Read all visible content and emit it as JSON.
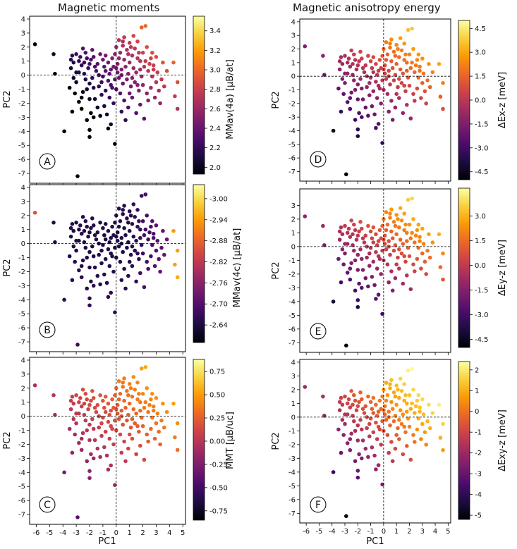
{
  "column_titles": {
    "left": "Magnetic moments",
    "right": "Magnetic anisotropy energy"
  },
  "colormap": {
    "name": "inferno",
    "stops": [
      "#000004",
      "#1b0c41",
      "#4a0c6b",
      "#781c6d",
      "#a52c60",
      "#cf4446",
      "#ed6925",
      "#fb9b06",
      "#f7d13d",
      "#fcffa4"
    ]
  },
  "chart_data": [
    {
      "panel": "A",
      "type": "scatter",
      "xlabel": "",
      "ylabel": "PC2",
      "xlim": [
        -6.5,
        5.2
      ],
      "ylim": [
        -7.7,
        4.2
      ],
      "xticks": [
        "",
        "",
        "",
        "",
        "",
        "",
        "",
        "",
        "",
        "",
        "",
        ""
      ],
      "xtick_values": [
        -6,
        -5,
        -4,
        -3,
        -2,
        -1,
        0,
        1,
        2,
        3,
        4,
        5
      ],
      "yticks": [
        "4",
        "3",
        "2",
        "1",
        "0",
        "-1",
        "-2",
        "-3",
        "-4",
        "-5",
        "-6",
        "-7"
      ],
      "ytick_values": [
        4,
        3,
        2,
        1,
        0,
        -1,
        -2,
        -3,
        -4,
        -5,
        -6,
        -7
      ],
      "colorbar": {
        "label": "MMav(4a) [μB/at]",
        "range": [
          1.93,
          3.55
        ],
        "reverse": false,
        "ticks": [
          "3.4",
          "3.2",
          "3.0",
          "2.8",
          "2.6",
          "2.4",
          "2.2",
          "2.0"
        ],
        "tick_values": [
          3.4,
          3.2,
          3.0,
          2.8,
          2.6,
          2.4,
          2.2,
          2.0
        ]
      },
      "color_func": "A"
    },
    {
      "panel": "B",
      "type": "scatter",
      "xlabel": "",
      "ylabel": "PC2",
      "xlim": [
        -6.5,
        5.2
      ],
      "ylim": [
        -7.7,
        4.2
      ],
      "xticks": [
        "",
        "",
        "",
        "",
        "",
        "",
        "",
        "",
        "",
        "",
        "",
        ""
      ],
      "xtick_values": [
        -6,
        -5,
        -4,
        -3,
        -2,
        -1,
        0,
        1,
        2,
        3,
        4,
        5
      ],
      "yticks": [
        "4",
        "3",
        "2",
        "1",
        "0",
        "-1",
        "-2",
        "-3",
        "-4",
        "-5",
        "-6",
        "-7"
      ],
      "ytick_values": [
        4,
        3,
        2,
        1,
        0,
        -1,
        -2,
        -3,
        -4,
        -5,
        -6,
        -7
      ],
      "colorbar": {
        "label": "MMav(4c) [μB/at]",
        "range": [
          -3.04,
          -2.59
        ],
        "reverse": true,
        "ticks": [
          "-2.64",
          "-2.70",
          "-2.76",
          "-2.82",
          "-2.88",
          "-2.94",
          "-3.00"
        ],
        "tick_values": [
          -2.64,
          -2.7,
          -2.76,
          -2.82,
          -2.88,
          -2.94,
          -3.0
        ]
      },
      "color_func": "B"
    },
    {
      "panel": "C",
      "type": "scatter",
      "xlabel": "PC1",
      "ylabel": "PC2",
      "xlim": [
        -6.5,
        5.2
      ],
      "ylim": [
        -7.7,
        4.2
      ],
      "xticks": [
        "-6",
        "-5",
        "-4",
        "-3",
        "-2",
        "-1",
        "0",
        "1",
        "2",
        "3",
        "4",
        "5"
      ],
      "xtick_values": [
        -6,
        -5,
        -4,
        -3,
        -2,
        -1,
        0,
        1,
        2,
        3,
        4,
        5
      ],
      "yticks": [
        "4",
        "3",
        "2",
        "1",
        "0",
        "-1",
        "-2",
        "-3",
        "-4",
        "-5",
        "-6",
        "-7"
      ],
      "ytick_values": [
        4,
        3,
        2,
        1,
        0,
        -1,
        -2,
        -3,
        -4,
        -5,
        -6,
        -7
      ],
      "colorbar": {
        "label": "MMT [μB/uc]",
        "range": [
          -0.85,
          0.88
        ],
        "reverse": false,
        "ticks": [
          "0.75",
          "0.50",
          "0.25",
          "0.00",
          "-0.25",
          "-0.50",
          "-0.75"
        ],
        "tick_values": [
          0.75,
          0.5,
          0.25,
          0.0,
          -0.25,
          -0.5,
          -0.75
        ]
      },
      "color_func": "C"
    },
    {
      "panel": "D",
      "type": "scatter",
      "xlabel": "",
      "ylabel": "PC2",
      "xlim": [
        -6.5,
        5.2
      ],
      "ylim": [
        -7.7,
        4.2
      ],
      "xticks": [
        "",
        "",
        "",
        "",
        "",
        "",
        "",
        "",
        "",
        "",
        "",
        ""
      ],
      "xtick_values": [
        -6,
        -5,
        -4,
        -3,
        -2,
        -1,
        0,
        1,
        2,
        3,
        4,
        5
      ],
      "yticks": [
        "4",
        "3",
        "2",
        "1",
        "0",
        "-1",
        "-2",
        "-3",
        "-4",
        "-5",
        "-6",
        "-7"
      ],
      "ytick_values": [
        4,
        3,
        2,
        1,
        0,
        -1,
        -2,
        -3,
        -4,
        -5,
        -6,
        -7
      ],
      "colorbar": {
        "label": "ΔEx-z [meV]",
        "range": [
          -5.0,
          5.0
        ],
        "reverse": false,
        "ticks": [
          "4.5",
          "3.0",
          "1.5",
          "0.0",
          "-1.5",
          "-3.0",
          "-4.5"
        ],
        "tick_values": [
          4.5,
          3.0,
          1.5,
          0.0,
          -1.5,
          -3.0,
          -4.5
        ]
      },
      "color_func": "D"
    },
    {
      "panel": "E",
      "type": "scatter",
      "xlabel": "",
      "ylabel": "PC2",
      "xlim": [
        -6.5,
        5.2
      ],
      "ylim": [
        -7.7,
        4.2
      ],
      "xticks": [
        "",
        "",
        "",
        "",
        "",
        "",
        "",
        "",
        "",
        "",
        "",
        ""
      ],
      "xtick_values": [
        -6,
        -5,
        -4,
        -3,
        -2,
        -1,
        0,
        1,
        2,
        3,
        4,
        5
      ],
      "yticks": [
        "3",
        "2",
        "1",
        "0",
        "-1",
        "-2",
        "-3",
        "-4",
        "-5",
        "-6",
        "-7"
      ],
      "ytick_values": [
        3,
        2,
        1,
        0,
        -1,
        -2,
        -3,
        -4,
        -5,
        -6,
        -7
      ],
      "colorbar": {
        "label": "ΔEy-z [meV]",
        "range": [
          -5.0,
          4.7
        ],
        "reverse": false,
        "ticks": [
          "3.0",
          "1.5",
          "0.0",
          "-1.5",
          "-3.0",
          "-4.5"
        ],
        "tick_values": [
          3.0,
          1.5,
          0.0,
          -1.5,
          -3.0,
          -4.5
        ]
      },
      "color_func": "E"
    },
    {
      "panel": "F",
      "type": "scatter",
      "xlabel": "PC1",
      "ylabel": "PC2",
      "xlim": [
        -6.5,
        5.2
      ],
      "ylim": [
        -7.7,
        4.2
      ],
      "xticks": [
        "-6",
        "-5",
        "-4",
        "-3",
        "-2",
        "-1",
        "0",
        "1",
        "2",
        "3",
        "4",
        "5"
      ],
      "xtick_values": [
        -6,
        -5,
        -4,
        -3,
        -2,
        -1,
        0,
        1,
        2,
        3,
        4,
        5
      ],
      "yticks": [
        "4",
        "3",
        "2",
        "1",
        "0",
        "-1",
        "-2",
        "-3",
        "-4",
        "-5",
        "-6",
        "-7"
      ],
      "ytick_values": [
        4,
        3,
        2,
        1,
        0,
        -1,
        -2,
        -3,
        -4,
        -5,
        -6,
        -7
      ],
      "colorbar": {
        "label": "ΔExy-z [meV]",
        "range": [
          -5.2,
          2.4
        ],
        "reverse": false,
        "ticks": [
          "2",
          "1",
          "0",
          "-1",
          "-2",
          "-3",
          "-4",
          "-5"
        ],
        "tick_values": [
          2,
          1,
          0,
          -1,
          -2,
          -3,
          -4,
          -5
        ]
      },
      "color_func": "F"
    }
  ],
  "scatter_points": [
    [
      -6.1,
      2.2
    ],
    [
      -4.7,
      1.5
    ],
    [
      -4.6,
      0.1
    ],
    [
      -3.9,
      -4.0
    ],
    [
      -2.9,
      -7.2
    ],
    [
      -2.0,
      -4.4
    ],
    [
      -0.1,
      -4.9
    ],
    [
      2.2,
      3.5
    ],
    [
      1.9,
      3.4
    ],
    [
      3.0,
      1.3
    ],
    [
      3.8,
      0.3
    ],
    [
      4.3,
      0.9
    ],
    [
      4.6,
      -0.5
    ],
    [
      4.4,
      -1.5
    ],
    [
      4.6,
      -2.4
    ],
    [
      3.3,
      -2.0
    ],
    [
      -3.0,
      1.5
    ],
    [
      -2.8,
      1.0
    ],
    [
      -2.6,
      0.7
    ],
    [
      -2.3,
      1.6
    ],
    [
      -2.1,
      0.5
    ],
    [
      -1.9,
      1.1
    ],
    [
      -1.7,
      1.3
    ],
    [
      -1.4,
      0.8
    ],
    [
      -3.2,
      0.9
    ],
    [
      -2.7,
      1.3
    ],
    [
      -2.4,
      0.9
    ],
    [
      -2.2,
      1.2
    ],
    [
      -1.2,
      1.5
    ],
    [
      -1.0,
      1.1
    ],
    [
      -0.8,
      1.4
    ],
    [
      -0.6,
      0.9
    ],
    [
      -0.3,
      1.2
    ],
    [
      -1.5,
      0.3
    ],
    [
      -1.8,
      -0.2
    ],
    [
      -2.0,
      -0.6
    ],
    [
      -2.5,
      -1.2
    ],
    [
      -2.8,
      -1.9
    ],
    [
      -2.6,
      -2.4
    ],
    [
      -2.2,
      -3.2
    ],
    [
      -1.9,
      -2.7
    ],
    [
      -2.0,
      -3.9
    ],
    [
      -1.6,
      -1.7
    ],
    [
      -1.3,
      -0.8
    ],
    [
      -1.1,
      -1.4
    ],
    [
      -0.9,
      -2.2
    ],
    [
      -0.7,
      -2.8
    ],
    [
      -0.5,
      -1.6
    ],
    [
      -0.3,
      -0.9
    ],
    [
      -0.1,
      -0.3
    ],
    [
      -1.0,
      -0.1
    ],
    [
      -0.8,
      0.3
    ],
    [
      -0.6,
      -0.4
    ],
    [
      -0.4,
      0.4
    ],
    [
      -1.6,
      0.6
    ],
    [
      -1.3,
      0.0
    ],
    [
      -2.3,
      -0.3
    ],
    [
      -2.8,
      0.2
    ],
    [
      -3.0,
      -0.5
    ],
    [
      -2.4,
      0.1
    ],
    [
      0.0,
      2.0
    ],
    [
      0.2,
      2.5
    ],
    [
      0.5,
      2.1
    ],
    [
      0.3,
      1.6
    ],
    [
      0.6,
      1.1
    ],
    [
      0.8,
      1.8
    ],
    [
      1.0,
      2.3
    ],
    [
      1.2,
      1.4
    ],
    [
      1.4,
      1.9
    ],
    [
      1.6,
      2.4
    ],
    [
      1.8,
      1.0
    ],
    [
      2.0,
      1.6
    ],
    [
      2.3,
      2.0
    ],
    [
      2.6,
      1.2
    ],
    [
      2.8,
      0.7
    ],
    [
      0.1,
      0.8
    ],
    [
      0.4,
      0.4
    ],
    [
      0.7,
      0.6
    ],
    [
      1.0,
      0.9
    ],
    [
      1.3,
      0.5
    ],
    [
      1.5,
      0.2
    ],
    [
      1.8,
      0.4
    ],
    [
      2.1,
      0.6
    ],
    [
      2.4,
      0.3
    ],
    [
      2.7,
      -0.1
    ],
    [
      3.1,
      0.2
    ],
    [
      3.4,
      -0.3
    ],
    [
      3.6,
      -0.8
    ],
    [
      0.2,
      -0.2
    ],
    [
      0.5,
      -0.6
    ],
    [
      0.8,
      -0.3
    ],
    [
      1.1,
      -0.8
    ],
    [
      1.4,
      -0.5
    ],
    [
      1.7,
      -1.1
    ],
    [
      2.0,
      -0.7
    ],
    [
      2.3,
      -1.3
    ],
    [
      2.6,
      -0.9
    ],
    [
      2.9,
      -1.6
    ],
    [
      3.2,
      -1.1
    ],
    [
      0.3,
      -1.3
    ],
    [
      0.6,
      -1.8
    ],
    [
      0.9,
      -2.3
    ],
    [
      1.2,
      -1.6
    ],
    [
      1.5,
      -2.7
    ],
    [
      1.8,
      -2.1
    ],
    [
      2.1,
      -3.1
    ],
    [
      0.4,
      -2.6
    ],
    [
      0.7,
      -3.2
    ],
    [
      -0.2,
      -2.0
    ],
    [
      -0.4,
      -3.5
    ],
    [
      0.0,
      -1.0
    ],
    [
      0.2,
      1.2
    ],
    [
      0.9,
      1.5
    ],
    [
      1.6,
      1.2
    ],
    [
      2.2,
      1.0
    ],
    [
      0.1,
      0.2
    ],
    [
      -0.2,
      0.6
    ],
    [
      -0.5,
      0.1
    ],
    [
      1.9,
      -0.1
    ],
    [
      2.5,
      0.8
    ],
    [
      3.5,
      0.9
    ],
    [
      0.6,
      2.7
    ],
    [
      -0.1,
      1.5
    ],
    [
      1.1,
      2.0
    ],
    [
      -3.5,
      -0.9
    ],
    [
      -3.3,
      -2.6
    ],
    [
      -3.1,
      -1.3
    ],
    [
      -2.0,
      -1.7
    ],
    [
      -1.4,
      -2.3
    ],
    [
      -1.7,
      -3.0
    ],
    [
      -0.6,
      -3.8
    ],
    [
      -1.2,
      -2.9
    ],
    [
      -0.8,
      -1.1
    ],
    [
      -2.6,
      -1.6
    ],
    [
      0.4,
      0.0
    ],
    [
      0.9,
      0.1
    ],
    [
      1.2,
      -0.2
    ],
    [
      2.8,
      0.4
    ],
    [
      3.0,
      -0.5
    ],
    [
      1.6,
      -0.7
    ],
    [
      2.4,
      -1.8
    ],
    [
      1.0,
      -1.3
    ],
    [
      0.5,
      2.4
    ],
    [
      1.3,
      2.8
    ],
    [
      -1.8,
      1.8
    ],
    [
      -2.5,
      1.9
    ],
    [
      -3.3,
      1.4
    ],
    [
      -3.4,
      1.1
    ],
    [
      -2.0,
      0.8
    ],
    [
      -0.9,
      0.6
    ],
    [
      0.0,
      0.5
    ],
    [
      1.7,
      1.6
    ],
    [
      2.7,
      1.6
    ],
    [
      -0.4,
      -0.7
    ],
    [
      -1.1,
      -0.5
    ],
    [
      -1.7,
      -0.9
    ],
    [
      -2.2,
      -1.0
    ],
    [
      -3.4,
      0.5
    ],
    [
      -3.2,
      -0.2
    ],
    [
      -3.0,
      0.2
    ]
  ],
  "panel_labels": [
    "A",
    "B",
    "C",
    "D",
    "E",
    "F"
  ]
}
